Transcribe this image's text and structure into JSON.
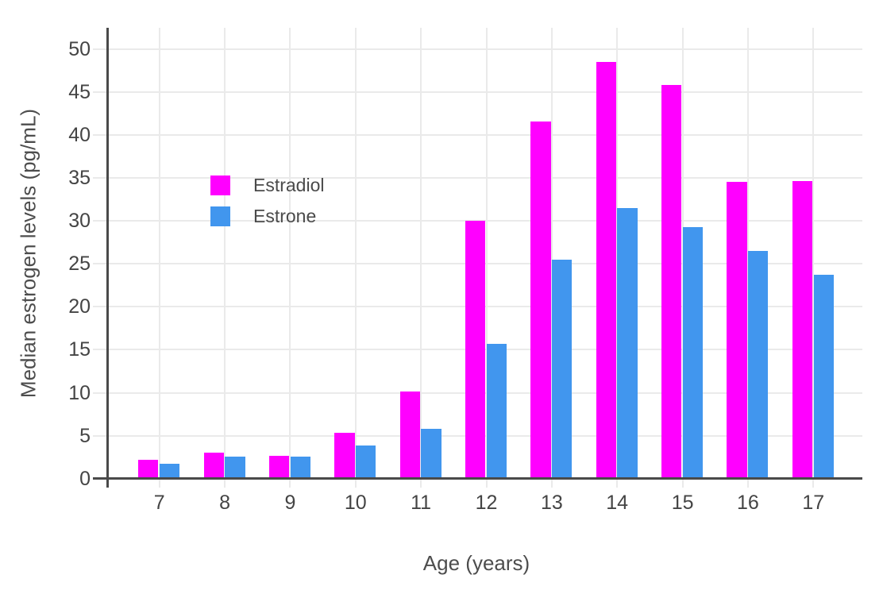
{
  "chart_data": {
    "type": "bar",
    "title": "",
    "xlabel": "Age (years)",
    "ylabel": "Median estrogen levels (pg/mL)",
    "categories": [
      7,
      8,
      9,
      10,
      11,
      12,
      13,
      14,
      15,
      16,
      17
    ],
    "series": [
      {
        "name": "Estradiol",
        "color": "#FF00FF",
        "values": [
          2.2,
          3.0,
          2.7,
          5.3,
          10.1,
          30.0,
          41.6,
          48.5,
          45.8,
          34.5,
          34.6
        ]
      },
      {
        "name": "Estrone",
        "color": "#4196EE",
        "values": [
          1.7,
          2.6,
          2.6,
          3.9,
          5.8,
          15.7,
          25.5,
          31.5,
          29.3,
          26.5,
          23.7
        ]
      }
    ],
    "yticks": [
      0,
      5,
      10,
      15,
      20,
      25,
      30,
      35,
      40,
      45,
      50
    ],
    "ylim": [
      0,
      52.5
    ],
    "grid": true,
    "legend_position": "inside-top-left",
    "bar_mode": "grouped"
  },
  "colors": {
    "estradiol": "#FF00FF",
    "estrone": "#4196EE",
    "gridline": "#EAEAEA",
    "axis_line": "#4A4A4A",
    "text": "#444444"
  }
}
